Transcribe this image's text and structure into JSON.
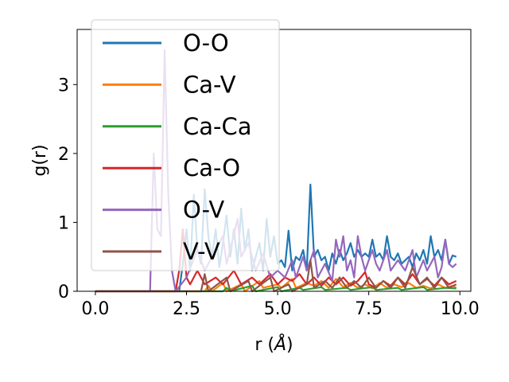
{
  "chart_data": {
    "type": "line",
    "xlabel_prefix": "r (",
    "xlabel_unit": "Å",
    "xlabel_suffix": ")",
    "ylabel": "g(r)",
    "xlim": [
      -0.5,
      10.3
    ],
    "ylim": [
      0,
      3.8
    ],
    "xticks": [
      0.0,
      2.5,
      5.0,
      7.5,
      10.0
    ],
    "xtick_labels": [
      "0.0",
      "2.5",
      "5.0",
      "7.5",
      "10.0"
    ],
    "yticks": [
      0,
      1,
      2,
      3
    ],
    "ytick_labels": [
      "0",
      "1",
      "2",
      "3"
    ],
    "grid": false,
    "legend_position": "upper-left",
    "series": [
      {
        "name": "O-O",
        "color": "#1f77b4",
        "points": [
          [
            0,
            0
          ],
          [
            2.3,
            0
          ],
          [
            2.4,
            0.4
          ],
          [
            2.5,
            0.9
          ],
          [
            2.6,
            0.3
          ],
          [
            2.7,
            1.4
          ],
          [
            2.8,
            0.6
          ],
          [
            2.9,
            0.4
          ],
          [
            3.0,
            1.48
          ],
          [
            3.1,
            0.8
          ],
          [
            3.2,
            0.5
          ],
          [
            3.3,
            0.9
          ],
          [
            3.4,
            0.35
          ],
          [
            3.5,
            0.7
          ],
          [
            3.6,
            1.1
          ],
          [
            3.7,
            0.5
          ],
          [
            3.8,
            0.9
          ],
          [
            3.9,
            0.4
          ],
          [
            4.0,
            1.2
          ],
          [
            4.1,
            0.6
          ],
          [
            4.2,
            0.9
          ],
          [
            4.3,
            0.3
          ],
          [
            4.4,
            0.5
          ],
          [
            4.5,
            0.7
          ],
          [
            4.6,
            0.3
          ],
          [
            4.7,
            1.05
          ],
          [
            4.8,
            0.5
          ],
          [
            4.9,
            0.8
          ],
          [
            5.0,
            0.4
          ],
          [
            5.1,
            0.45
          ],
          [
            5.2,
            0.35
          ],
          [
            5.3,
            0.88
          ],
          [
            5.4,
            0.3
          ],
          [
            5.5,
            0.5
          ],
          [
            5.6,
            0.45
          ],
          [
            5.7,
            0.6
          ],
          [
            5.8,
            0.3
          ],
          [
            5.9,
            1.55
          ],
          [
            6.0,
            0.5
          ],
          [
            6.1,
            0.6
          ],
          [
            6.2,
            0.45
          ],
          [
            6.3,
            0.5
          ],
          [
            6.4,
            0.3
          ],
          [
            6.5,
            0.55
          ],
          [
            6.6,
            0.4
          ],
          [
            6.7,
            0.6
          ],
          [
            6.8,
            0.45
          ],
          [
            6.9,
            0.55
          ],
          [
            7.0,
            0.7
          ],
          [
            7.1,
            0.5
          ],
          [
            7.2,
            0.6
          ],
          [
            7.3,
            0.5
          ],
          [
            7.4,
            0.55
          ],
          [
            7.5,
            0.5
          ],
          [
            7.6,
            0.75
          ],
          [
            7.7,
            0.5
          ],
          [
            7.8,
            0.55
          ],
          [
            7.9,
            0.45
          ],
          [
            8.0,
            0.8
          ],
          [
            8.1,
            0.5
          ],
          [
            8.2,
            0.45
          ],
          [
            8.3,
            0.55
          ],
          [
            8.4,
            0.4
          ],
          [
            8.5,
            0.45
          ],
          [
            8.6,
            0.5
          ],
          [
            8.7,
            0.35
          ],
          [
            8.8,
            0.55
          ],
          [
            8.9,
            0.45
          ],
          [
            9.0,
            0.6
          ],
          [
            9.1,
            0.4
          ],
          [
            9.2,
            0.8
          ],
          [
            9.3,
            0.5
          ],
          [
            9.4,
            0.6
          ],
          [
            9.5,
            0.45
          ],
          [
            9.6,
            0.75
          ],
          [
            9.7,
            0.4
          ],
          [
            9.8,
            0.52
          ],
          [
            9.9,
            0.5
          ]
        ]
      },
      {
        "name": "Ca-V",
        "color": "#ff7f0e",
        "points": [
          [
            0,
            0
          ],
          [
            3.0,
            0
          ],
          [
            3.1,
            0.08
          ],
          [
            3.2,
            0
          ],
          [
            3.5,
            0.12
          ],
          [
            3.6,
            0
          ],
          [
            4.0,
            0.1
          ],
          [
            4.1,
            0
          ],
          [
            4.5,
            0.15
          ],
          [
            4.6,
            0.05
          ],
          [
            5.0,
            0.1
          ],
          [
            5.1,
            0.05
          ],
          [
            5.4,
            0.18
          ],
          [
            5.5,
            0.05
          ],
          [
            5.8,
            0.12
          ],
          [
            6.0,
            0.08
          ],
          [
            6.2,
            0.15
          ],
          [
            6.4,
            0.05
          ],
          [
            6.6,
            0.18
          ],
          [
            6.8,
            0.06
          ],
          [
            7.0,
            0.12
          ],
          [
            7.2,
            0.05
          ],
          [
            7.4,
            0.1
          ],
          [
            7.6,
            0.04
          ],
          [
            7.8,
            0.12
          ],
          [
            8.0,
            0.05
          ],
          [
            8.2,
            0.1
          ],
          [
            8.4,
            0.06
          ],
          [
            8.6,
            0.12
          ],
          [
            8.8,
            0.05
          ],
          [
            9.0,
            0.08
          ],
          [
            9.2,
            0.04
          ],
          [
            9.4,
            0.1
          ],
          [
            9.6,
            0.05
          ],
          [
            9.8,
            0.08
          ],
          [
            9.9,
            0.05
          ]
        ]
      },
      {
        "name": "Ca-Ca",
        "color": "#2ca02c",
        "points": [
          [
            0,
            0
          ],
          [
            3.5,
            0
          ],
          [
            3.6,
            0.05
          ],
          [
            3.7,
            0
          ],
          [
            4.3,
            0.08
          ],
          [
            4.4,
            0
          ],
          [
            5.0,
            0.06
          ],
          [
            5.1,
            0
          ],
          [
            5.6,
            0.05
          ],
          [
            5.7,
            0.02
          ],
          [
            6.2,
            0.06
          ],
          [
            6.3,
            0.02
          ],
          [
            6.9,
            0.05
          ],
          [
            7.0,
            0.02
          ],
          [
            7.6,
            0.06
          ],
          [
            7.7,
            0.02
          ],
          [
            8.3,
            0.05
          ],
          [
            8.4,
            0.02
          ],
          [
            9.0,
            0.06
          ],
          [
            9.1,
            0.02
          ],
          [
            9.6,
            0.05
          ],
          [
            9.9,
            0.04
          ]
        ]
      },
      {
        "name": "Ca-O",
        "color": "#d62728",
        "points": [
          [
            0,
            0
          ],
          [
            2.2,
            0
          ],
          [
            2.3,
            0.3
          ],
          [
            2.4,
            0.9
          ],
          [
            2.5,
            0.2
          ],
          [
            2.6,
            0.1
          ],
          [
            2.8,
            0.3
          ],
          [
            3.0,
            0.1
          ],
          [
            3.3,
            0.2
          ],
          [
            3.5,
            0.1
          ],
          [
            3.8,
            0.3
          ],
          [
            4.0,
            0.1
          ],
          [
            4.3,
            0.2
          ],
          [
            4.5,
            0.1
          ],
          [
            4.8,
            0.25
          ],
          [
            5.0,
            0.1
          ],
          [
            5.2,
            0.2
          ],
          [
            5.4,
            0.15
          ],
          [
            5.6,
            0.25
          ],
          [
            5.8,
            0.1
          ],
          [
            6.0,
            0.2
          ],
          [
            6.2,
            0.08
          ],
          [
            6.4,
            0.2
          ],
          [
            6.6,
            0.1
          ],
          [
            6.8,
            0.2
          ],
          [
            7.0,
            0.08
          ],
          [
            7.2,
            0.15
          ],
          [
            7.4,
            0.28
          ],
          [
            7.5,
            0.1
          ],
          [
            7.7,
            0.05
          ],
          [
            7.9,
            0.15
          ],
          [
            8.1,
            0.08
          ],
          [
            8.3,
            0.2
          ],
          [
            8.5,
            0.1
          ],
          [
            8.7,
            0.25
          ],
          [
            8.9,
            0.1
          ],
          [
            9.1,
            0.18
          ],
          [
            9.3,
            0.08
          ],
          [
            9.5,
            0.2
          ],
          [
            9.7,
            0.1
          ],
          [
            9.9,
            0.15
          ]
        ]
      },
      {
        "name": "O-V",
        "color": "#9467bd",
        "points": [
          [
            0,
            0
          ],
          [
            1.5,
            0
          ],
          [
            1.6,
            2.0
          ],
          [
            1.7,
            0.9
          ],
          [
            1.8,
            0.8
          ],
          [
            1.9,
            3.5
          ],
          [
            2.0,
            1.4
          ],
          [
            2.1,
            0.3
          ],
          [
            2.2,
            0
          ],
          [
            2.5,
            0.2
          ],
          [
            2.8,
            0.6
          ],
          [
            3.0,
            0.3
          ],
          [
            3.2,
            0.5
          ],
          [
            3.5,
            0.8
          ],
          [
            3.6,
            0.4
          ],
          [
            3.9,
            1.05
          ],
          [
            4.0,
            0.5
          ],
          [
            4.2,
            0.7
          ],
          [
            4.4,
            0.3
          ],
          [
            4.6,
            0.55
          ],
          [
            4.8,
            0.2
          ],
          [
            5.0,
            0.3
          ],
          [
            5.2,
            0.2
          ],
          [
            5.4,
            0.45
          ],
          [
            5.5,
            0.2
          ],
          [
            5.7,
            0.5
          ],
          [
            5.8,
            0.3
          ],
          [
            6.0,
            0.6
          ],
          [
            6.1,
            0.2
          ],
          [
            6.3,
            0.4
          ],
          [
            6.5,
            0.15
          ],
          [
            6.6,
            0.75
          ],
          [
            6.7,
            0.5
          ],
          [
            6.8,
            0.8
          ],
          [
            6.9,
            0.3
          ],
          [
            7.0,
            0.45
          ],
          [
            7.1,
            0.2
          ],
          [
            7.2,
            0.8
          ],
          [
            7.3,
            0.5
          ],
          [
            7.4,
            0.3
          ],
          [
            7.6,
            0.6
          ],
          [
            7.7,
            0.4
          ],
          [
            7.8,
            0.3
          ],
          [
            8.0,
            0.6
          ],
          [
            8.1,
            0.3
          ],
          [
            8.3,
            0.45
          ],
          [
            8.5,
            0.3
          ],
          [
            8.7,
            0.6
          ],
          [
            8.8,
            0.2
          ],
          [
            9.0,
            0.45
          ],
          [
            9.1,
            0.3
          ],
          [
            9.3,
            0.5
          ],
          [
            9.4,
            0.2
          ],
          [
            9.5,
            0.35
          ],
          [
            9.6,
            0.75
          ],
          [
            9.7,
            0.4
          ],
          [
            9.8,
            0.35
          ],
          [
            9.9,
            0.4
          ]
        ]
      },
      {
        "name": "V-V",
        "color": "#8c564b",
        "points": [
          [
            0,
            0
          ],
          [
            2.9,
            0
          ],
          [
            3.0,
            0.25
          ],
          [
            3.1,
            0
          ],
          [
            3.6,
            0.2
          ],
          [
            3.7,
            0
          ],
          [
            4.2,
            0.15
          ],
          [
            4.3,
            0
          ],
          [
            4.8,
            0.2
          ],
          [
            4.9,
            0
          ],
          [
            5.3,
            0.1
          ],
          [
            5.4,
            0
          ],
          [
            5.8,
            0.1
          ],
          [
            5.9,
            0.45
          ],
          [
            6.0,
            0.05
          ],
          [
            6.3,
            0.15
          ],
          [
            6.5,
            0.05
          ],
          [
            6.7,
            0.2
          ],
          [
            6.9,
            0.05
          ],
          [
            7.1,
            0.15
          ],
          [
            7.3,
            0.05
          ],
          [
            7.5,
            0.2
          ],
          [
            7.7,
            0.05
          ],
          [
            7.9,
            0.15
          ],
          [
            8.1,
            0.05
          ],
          [
            8.3,
            0.2
          ],
          [
            8.5,
            0.05
          ],
          [
            8.7,
            0.35
          ],
          [
            8.9,
            0.1
          ],
          [
            9.1,
            0.2
          ],
          [
            9.3,
            0.05
          ],
          [
            9.5,
            0.2
          ],
          [
            9.7,
            0.05
          ],
          [
            9.9,
            0.1
          ]
        ]
      }
    ]
  }
}
